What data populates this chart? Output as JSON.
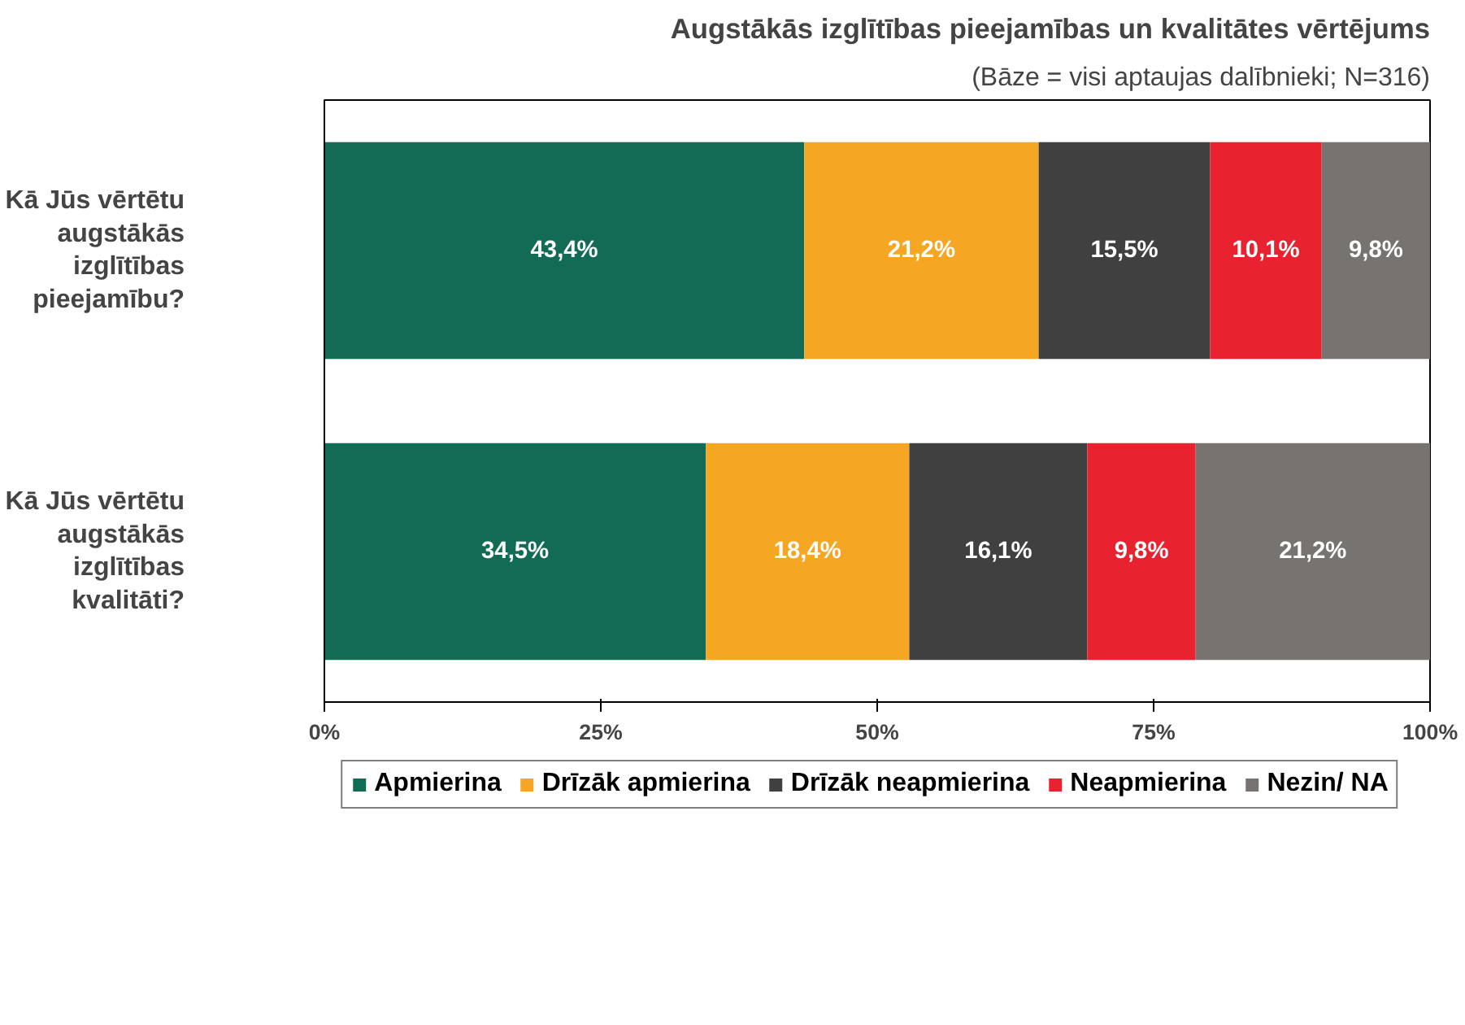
{
  "chart_data": {
    "type": "bar",
    "orientation": "horizontal",
    "stacked": true,
    "title": "Augstākās izglītības pieejamības un kvalitātes vērtējums",
    "subtitle": "(Bāze = visi aptaujas dalībnieki; N=316)",
    "categories": [
      "Kā Jūs vērtētu augstākās izglītības pieejamību?",
      "Kā Jūs vērtētu augstākās izglītības kvalitāti?"
    ],
    "series": [
      {
        "name": "Apmierina",
        "color": "#116b55",
        "values": [
          43.4,
          34.5
        ],
        "value_labels": [
          "43,4%",
          "34,5%"
        ]
      },
      {
        "name": "Drīzāk apmierina",
        "color": "#f5a623",
        "values": [
          21.2,
          18.4
        ],
        "value_labels": [
          "21,2%",
          "18,4%"
        ]
      },
      {
        "name": "Drīzāk neapmierina",
        "color": "#404040",
        "values": [
          15.5,
          16.1
        ],
        "value_labels": [
          "15,5%",
          "16,1%"
        ]
      },
      {
        "name": "Neapmierina",
        "color": "#e8232f",
        "values": [
          10.1,
          9.8
        ],
        "value_labels": [
          "10,1%",
          "9,8%"
        ]
      },
      {
        "name": "Nezin/ NA",
        "color": "#777370",
        "values": [
          9.8,
          21.2
        ],
        "value_labels": [
          "9,8%",
          "21,2%"
        ]
      }
    ],
    "xlim": [
      0,
      100
    ],
    "xticks": [
      {
        "value": 0,
        "label": "0%"
      },
      {
        "value": 25,
        "label": "25%"
      },
      {
        "value": 50,
        "label": "50%"
      },
      {
        "value": 75,
        "label": "75%"
      },
      {
        "value": 100,
        "label": "100%"
      }
    ],
    "grid": false,
    "legend": "bottom"
  }
}
